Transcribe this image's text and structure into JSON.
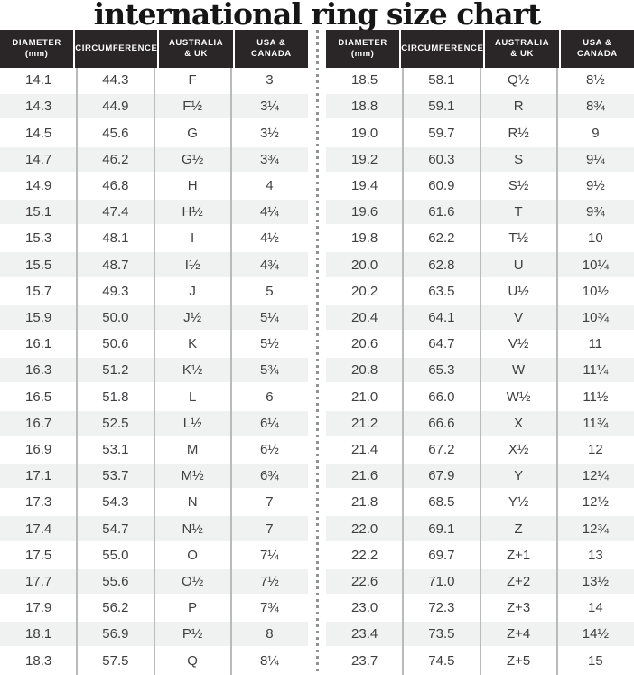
{
  "title": "international ring size chart",
  "columns": [
    {
      "name": "diameter",
      "label_lines": [
        "DIAMETER",
        "(mm)"
      ]
    },
    {
      "name": "circumference",
      "label_lines": [
        "CIRCUMFERENCE"
      ]
    },
    {
      "name": "australia-uk",
      "label_lines": [
        "AUSTRALIA",
        "& UK"
      ]
    },
    {
      "name": "usa-canada",
      "label_lines": [
        "USA &",
        "CANADA"
      ]
    }
  ],
  "colors": {
    "header_bg": "#2a2526",
    "header_text": "#ffffff",
    "row_alt": "#f0f1f1",
    "row_text": "#3f3e40",
    "column_separator": "#b9babc",
    "divider_dots": "#8f9193",
    "title_text": "#161616"
  },
  "chart_data": {
    "type": "table",
    "title": "international ring size chart",
    "columns": [
      "DIAMETER (mm)",
      "CIRCUMFERENCE",
      "AUSTRALIA & UK",
      "USA & CANADA"
    ],
    "tables": [
      {
        "rows": [
          [
            "14.1",
            "44.3",
            "F",
            "3"
          ],
          [
            "14.3",
            "44.9",
            "F½",
            "3¼"
          ],
          [
            "14.5",
            "45.6",
            "G",
            "3½"
          ],
          [
            "14.7",
            "46.2",
            "G½",
            "3¾"
          ],
          [
            "14.9",
            "46.8",
            "H",
            "4"
          ],
          [
            "15.1",
            "47.4",
            "H½",
            "4¼"
          ],
          [
            "15.3",
            "48.1",
            "I",
            "4½"
          ],
          [
            "15.5",
            "48.7",
            "I½",
            "4¾"
          ],
          [
            "15.7",
            "49.3",
            "J",
            "5"
          ],
          [
            "15.9",
            "50.0",
            "J½",
            "5¼"
          ],
          [
            "16.1",
            "50.6",
            "K",
            "5½"
          ],
          [
            "16.3",
            "51.2",
            "K½",
            "5¾"
          ],
          [
            "16.5",
            "51.8",
            "L",
            "6"
          ],
          [
            "16.7",
            "52.5",
            "L½",
            "6¼"
          ],
          [
            "16.9",
            "53.1",
            "M",
            "6½"
          ],
          [
            "17.1",
            "53.7",
            "M½",
            "6¾"
          ],
          [
            "17.3",
            "54.3",
            "N",
            "7"
          ],
          [
            "17.4",
            "54.7",
            "N½",
            "7"
          ],
          [
            "17.5",
            "55.0",
            "O",
            "7¼"
          ],
          [
            "17.7",
            "55.6",
            "O½",
            "7½"
          ],
          [
            "17.9",
            "56.2",
            "P",
            "7¾"
          ],
          [
            "18.1",
            "56.9",
            "P½",
            "8"
          ],
          [
            "18.3",
            "57.5",
            "Q",
            "8¼"
          ]
        ]
      },
      {
        "rows": [
          [
            "18.5",
            "58.1",
            "Q½",
            "8½"
          ],
          [
            "18.8",
            "59.1",
            "R",
            "8¾"
          ],
          [
            "19.0",
            "59.7",
            "R½",
            "9"
          ],
          [
            "19.2",
            "60.3",
            "S",
            "9¼"
          ],
          [
            "19.4",
            "60.9",
            "S½",
            "9½"
          ],
          [
            "19.6",
            "61.6",
            "T",
            "9¾"
          ],
          [
            "19.8",
            "62.2",
            "T½",
            "10"
          ],
          [
            "20.0",
            "62.8",
            "U",
            "10¼"
          ],
          [
            "20.2",
            "63.5",
            "U½",
            "10½"
          ],
          [
            "20.4",
            "64.1",
            "V",
            "10¾"
          ],
          [
            "20.6",
            "64.7",
            "V½",
            "11"
          ],
          [
            "20.8",
            "65.3",
            "W",
            "11¼"
          ],
          [
            "21.0",
            "66.0",
            "W½",
            "11½"
          ],
          [
            "21.2",
            "66.6",
            "X",
            "11¾"
          ],
          [
            "21.4",
            "67.2",
            "X½",
            "12"
          ],
          [
            "21.6",
            "67.9",
            "Y",
            "12¼"
          ],
          [
            "21.8",
            "68.5",
            "Y½",
            "12½"
          ],
          [
            "22.0",
            "69.1",
            "Z",
            "12¾"
          ],
          [
            "22.2",
            "69.7",
            "Z+1",
            "13"
          ],
          [
            "22.6",
            "71.0",
            "Z+2",
            "13½"
          ],
          [
            "23.0",
            "72.3",
            "Z+3",
            "14"
          ],
          [
            "23.4",
            "73.5",
            "Z+4",
            "14½"
          ],
          [
            "23.7",
            "74.5",
            "Z+5",
            "15"
          ]
        ]
      }
    ]
  }
}
